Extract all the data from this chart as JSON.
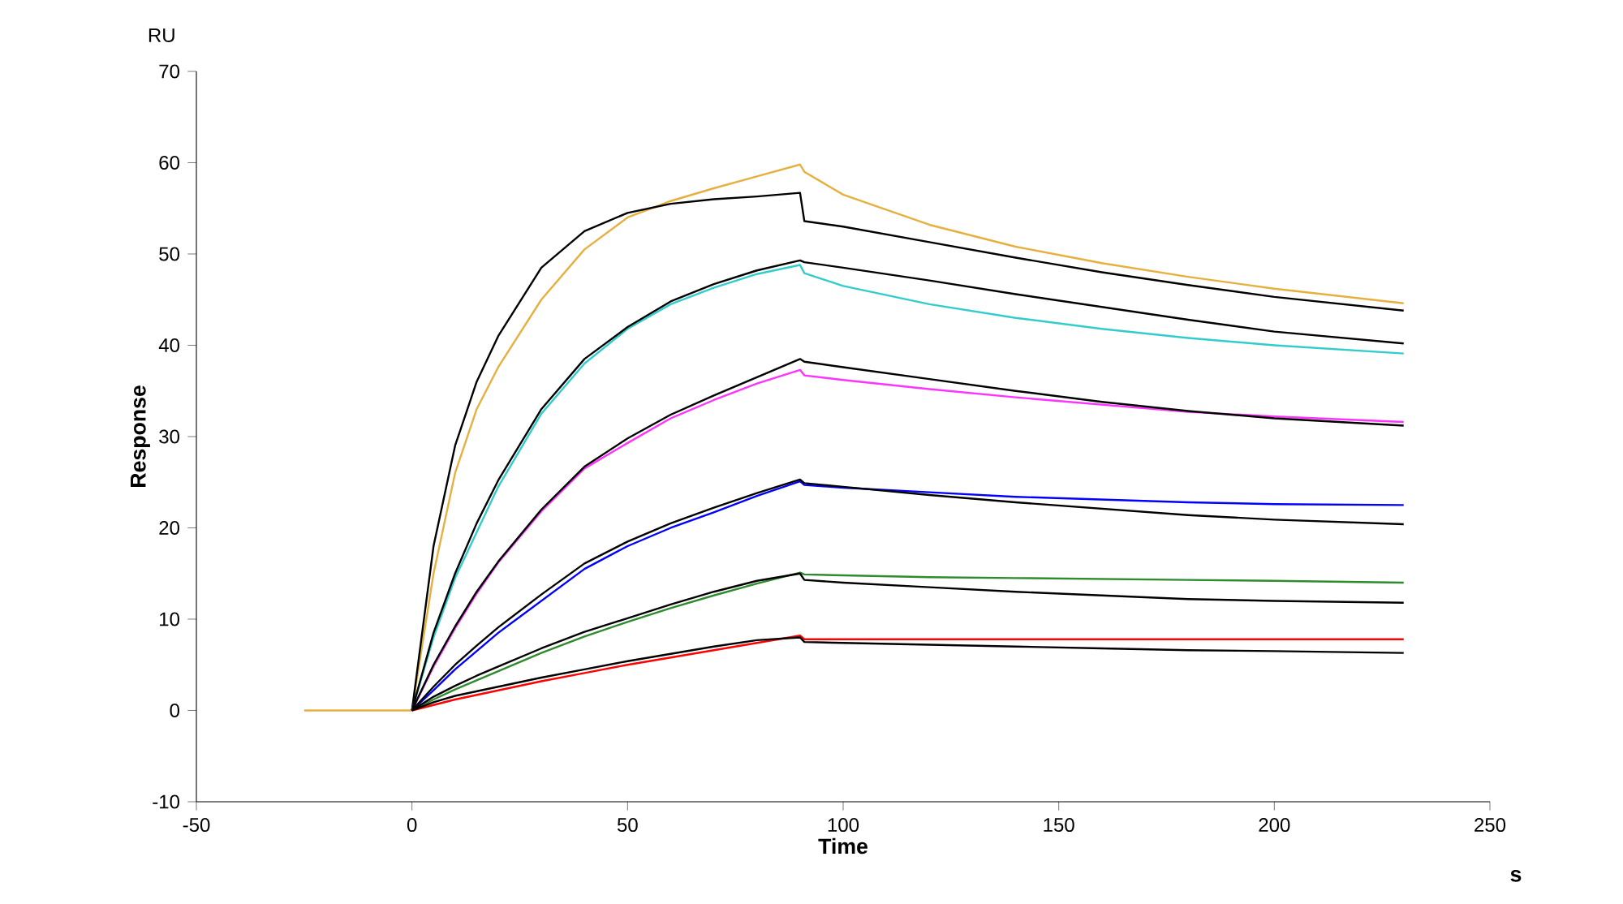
{
  "chart_data": {
    "type": "line",
    "xlabel": "Time",
    "ylabel": "Response",
    "annotations": [
      "RU",
      "s"
    ],
    "x": [
      -25,
      0,
      5,
      10,
      15,
      20,
      30,
      40,
      50,
      60,
      70,
      80,
      90,
      91,
      100,
      120,
      140,
      160,
      180,
      200,
      230
    ],
    "xlim": [
      -50,
      250
    ],
    "ylim": [
      -10,
      70
    ],
    "xticks": [
      -50,
      0,
      50,
      100,
      150,
      200,
      250
    ],
    "yticks": [
      -10,
      0,
      10,
      20,
      30,
      40,
      50,
      60,
      70
    ],
    "series": [
      {
        "color": "#e6b040",
        "values": [
          0,
          0,
          15,
          26,
          33,
          37.6,
          45,
          50.5,
          54,
          55.8,
          57.2,
          58.5,
          59.8,
          59,
          56.5,
          53.2,
          50.8,
          49,
          47.5,
          46.2,
          44.6
        ]
      },
      {
        "color": "#000000",
        "values": [
          null,
          0,
          18,
          29,
          36,
          41,
          48.5,
          52.5,
          54.5,
          55.5,
          56,
          56.3,
          56.7,
          53.6,
          53,
          51.3,
          49.6,
          48,
          46.6,
          45.3,
          43.8
        ]
      },
      {
        "color": "#33cccc",
        "values": [
          null,
          0,
          8,
          14.5,
          19.5,
          24.5,
          32.5,
          38,
          41.8,
          44.5,
          46.3,
          47.8,
          48.8,
          47.9,
          46.5,
          44.5,
          43,
          41.8,
          40.8,
          40,
          39.1
        ]
      },
      {
        "color": "#000000",
        "values": [
          null,
          0,
          8.5,
          15,
          20.5,
          25.2,
          33,
          38.5,
          42,
          44.8,
          46.7,
          48.2,
          49.3,
          49.1,
          48.5,
          47.1,
          45.6,
          44.2,
          42.8,
          41.5,
          40.2
        ]
      },
      {
        "color": "#ff33ff",
        "values": [
          null,
          0,
          4.8,
          9,
          12.8,
          16.2,
          21.8,
          26.5,
          29.3,
          32,
          34,
          35.8,
          37.3,
          36.7,
          36.2,
          35.2,
          34.3,
          33.5,
          32.7,
          32.2,
          31.6
        ]
      },
      {
        "color": "#000000",
        "values": [
          null,
          0,
          5,
          9.2,
          13,
          16.3,
          22,
          26.7,
          29.8,
          32.4,
          34.5,
          36.5,
          38.5,
          38.2,
          37.6,
          36.3,
          35,
          33.8,
          32.8,
          32,
          31.2
        ]
      },
      {
        "color": "#0000ff",
        "values": [
          null,
          0,
          2.2,
          4.5,
          6.5,
          8.5,
          12,
          15.5,
          18,
          20,
          21.7,
          23.5,
          25.1,
          24.7,
          24.4,
          23.9,
          23.4,
          23.1,
          22.8,
          22.6,
          22.5
        ]
      },
      {
        "color": "#000000",
        "values": [
          null,
          0,
          2.6,
          5,
          7.1,
          9.1,
          12.7,
          16.1,
          18.5,
          20.5,
          22.2,
          23.8,
          25.3,
          24.9,
          24.5,
          23.6,
          22.8,
          22.1,
          21.4,
          20.9,
          20.4
        ]
      },
      {
        "color": "#2e8b2e",
        "values": [
          null,
          0,
          1.2,
          2.3,
          3.3,
          4.3,
          6.3,
          8.1,
          9.7,
          11.2,
          12.6,
          13.9,
          15.1,
          14.9,
          14.8,
          14.6,
          14.5,
          14.4,
          14.3,
          14.2,
          14.0
        ]
      },
      {
        "color": "#000000",
        "values": [
          null,
          0,
          1.5,
          2.7,
          3.8,
          4.8,
          6.8,
          8.6,
          10.1,
          11.6,
          13,
          14.2,
          15,
          14.3,
          14,
          13.5,
          13,
          12.6,
          12.2,
          12,
          11.8
        ]
      },
      {
        "color": "#ff0000",
        "values": [
          null,
          0,
          0.6,
          1.2,
          1.7,
          2.2,
          3.2,
          4.1,
          5,
          5.8,
          6.6,
          7.4,
          8.2,
          7.8,
          7.8,
          7.8,
          7.8,
          7.8,
          7.8,
          7.8,
          7.8
        ]
      },
      {
        "color": "#000000",
        "values": [
          null,
          0,
          0.9,
          1.6,
          2.1,
          2.6,
          3.6,
          4.5,
          5.4,
          6.2,
          7,
          7.7,
          8,
          7.5,
          7.4,
          7.2,
          7,
          6.8,
          6.6,
          6.5,
          6.3
        ]
      }
    ]
  }
}
